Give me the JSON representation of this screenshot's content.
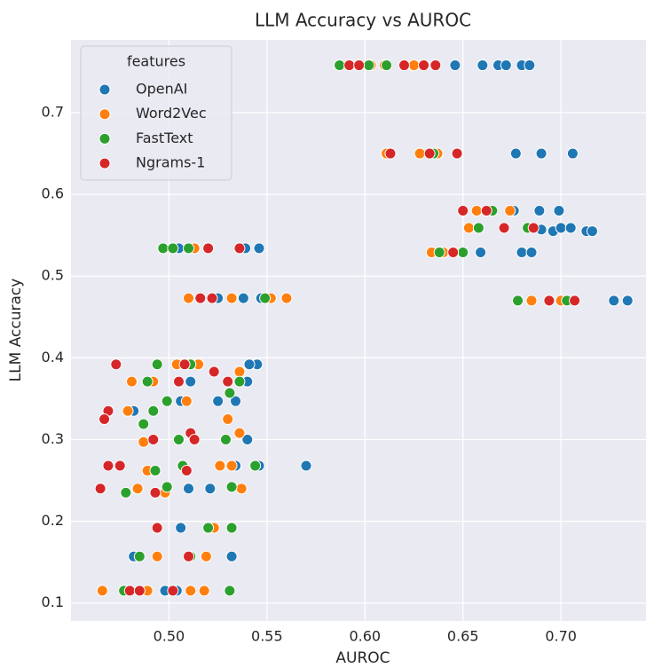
{
  "chart_data": {
    "type": "scatter",
    "title": "LLM Accuracy vs AUROC",
    "x_label": "AUROC",
    "y_label": "LLM Accuracy",
    "xlim": [
      0.45,
      0.7434
    ],
    "ylim": [
      0.078,
      0.789
    ],
    "xticks": [
      {
        "value": 0.5,
        "label": "0.50"
      },
      {
        "value": 0.55,
        "label": "0.55"
      },
      {
        "value": 0.6,
        "label": "0.60"
      },
      {
        "value": 0.65,
        "label": "0.65"
      },
      {
        "value": 0.7,
        "label": "0.70"
      }
    ],
    "yticks": [
      0.1,
      0.2,
      0.3,
      0.4,
      0.5,
      0.6,
      0.7
    ],
    "grid": true,
    "legend": "upper left",
    "legend_title": "features",
    "series": [
      {
        "name": "OpenAI",
        "color": "#1f77b4",
        "x": [
          0.646,
          0.66,
          0.668,
          0.672,
          0.68,
          0.684,
          0.677,
          0.69,
          0.706,
          0.676,
          0.689,
          0.699,
          0.69,
          0.696,
          0.7,
          0.705,
          0.713,
          0.716,
          0.68,
          0.685,
          0.659,
          0.505,
          0.539,
          0.546,
          0.525,
          0.547,
          0.538,
          0.727,
          0.734,
          0.705,
          0.545,
          0.541,
          0.511,
          0.54,
          0.506,
          0.525,
          0.534,
          0.482,
          0.54,
          0.57,
          0.546,
          0.534,
          0.51,
          0.521,
          0.506,
          0.52,
          0.482,
          0.532,
          0.504,
          0.498
        ],
        "y": [
          0.758,
          0.758,
          0.758,
          0.758,
          0.758,
          0.758,
          0.65,
          0.65,
          0.65,
          0.58,
          0.58,
          0.58,
          0.557,
          0.555,
          0.559,
          0.559,
          0.555,
          0.555,
          0.529,
          0.529,
          0.529,
          0.534,
          0.534,
          0.534,
          0.473,
          0.473,
          0.473,
          0.47,
          0.47,
          0.47,
          0.392,
          0.392,
          0.371,
          0.371,
          0.347,
          0.347,
          0.347,
          0.335,
          0.3,
          0.268,
          0.268,
          0.268,
          0.24,
          0.24,
          0.192,
          0.192,
          0.157,
          0.157,
          0.115,
          0.115
        ]
      },
      {
        "name": "Word2Vec",
        "color": "#ff7f0e",
        "x": [
          0.603,
          0.61,
          0.625,
          0.611,
          0.628,
          0.637,
          0.657,
          0.674,
          0.653,
          0.634,
          0.64,
          0.685,
          0.7,
          0.513,
          0.51,
          0.532,
          0.552,
          0.56,
          0.504,
          0.515,
          0.536,
          0.481,
          0.492,
          0.509,
          0.479,
          0.53,
          0.536,
          0.487,
          0.526,
          0.532,
          0.489,
          0.484,
          0.537,
          0.498,
          0.523,
          0.494,
          0.519,
          0.466,
          0.489,
          0.511,
          0.518
        ],
        "y": [
          0.758,
          0.758,
          0.758,
          0.65,
          0.65,
          0.65,
          0.58,
          0.58,
          0.559,
          0.529,
          0.529,
          0.47,
          0.47,
          0.534,
          0.473,
          0.473,
          0.473,
          0.473,
          0.392,
          0.392,
          0.383,
          0.371,
          0.371,
          0.347,
          0.335,
          0.325,
          0.308,
          0.297,
          0.268,
          0.268,
          0.262,
          0.24,
          0.24,
          0.235,
          0.192,
          0.157,
          0.157,
          0.115,
          0.115,
          0.115,
          0.115
        ]
      },
      {
        "name": "FastText",
        "color": "#2ca02c",
        "x": [
          0.587,
          0.602,
          0.611,
          0.635,
          0.665,
          0.658,
          0.683,
          0.638,
          0.65,
          0.678,
          0.703,
          0.497,
          0.502,
          0.51,
          0.549,
          0.494,
          0.511,
          0.489,
          0.536,
          0.531,
          0.499,
          0.492,
          0.487,
          0.505,
          0.529,
          0.507,
          0.544,
          0.493,
          0.499,
          0.532,
          0.478,
          0.52,
          0.532,
          0.485,
          0.511,
          0.477,
          0.531
        ],
        "y": [
          0.758,
          0.758,
          0.758,
          0.65,
          0.58,
          0.559,
          0.559,
          0.529,
          0.529,
          0.47,
          0.47,
          0.534,
          0.534,
          0.534,
          0.473,
          0.392,
          0.392,
          0.371,
          0.371,
          0.357,
          0.347,
          0.335,
          0.319,
          0.3,
          0.3,
          0.268,
          0.268,
          0.262,
          0.242,
          0.242,
          0.235,
          0.192,
          0.192,
          0.157,
          0.157,
          0.115,
          0.115
        ]
      },
      {
        "name": "Ngrams-1",
        "color": "#d62728",
        "x": [
          0.592,
          0.597,
          0.62,
          0.63,
          0.636,
          0.613,
          0.633,
          0.647,
          0.65,
          0.662,
          0.671,
          0.686,
          0.645,
          0.694,
          0.707,
          0.52,
          0.536,
          0.516,
          0.522,
          0.473,
          0.508,
          0.523,
          0.505,
          0.53,
          0.469,
          0.467,
          0.511,
          0.492,
          0.513,
          0.469,
          0.475,
          0.509,
          0.465,
          0.493,
          0.494,
          0.51,
          0.48,
          0.485,
          0.502
        ],
        "y": [
          0.758,
          0.758,
          0.758,
          0.758,
          0.758,
          0.65,
          0.65,
          0.65,
          0.58,
          0.58,
          0.559,
          0.559,
          0.529,
          0.47,
          0.47,
          0.534,
          0.534,
          0.473,
          0.473,
          0.392,
          0.392,
          0.383,
          0.371,
          0.371,
          0.335,
          0.325,
          0.308,
          0.3,
          0.3,
          0.268,
          0.268,
          0.262,
          0.24,
          0.235,
          0.192,
          0.157,
          0.115,
          0.115,
          0.115
        ]
      }
    ]
  }
}
